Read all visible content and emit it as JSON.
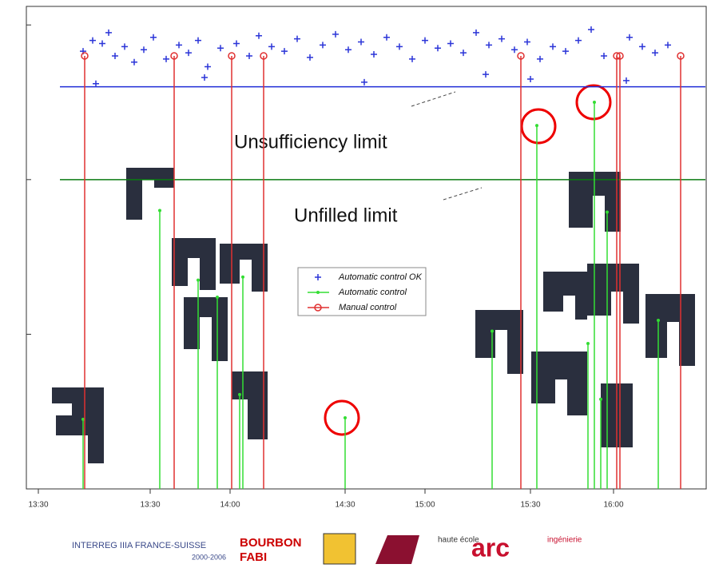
{
  "chart_data": {
    "type": "scatter",
    "xlim": [
      -3.75,
      209.25
    ],
    "ylim": [
      0,
      3.12
    ],
    "xticks": [
      {
        "value": 0,
        "label": "13:30"
      },
      {
        "value": 35,
        "label": "13:30"
      },
      {
        "value": 60,
        "label": "14:00"
      },
      {
        "value": 96,
        "label": "14:30"
      },
      {
        "value": 121,
        "label": "15:00"
      },
      {
        "value": 154,
        "label": "15:30"
      },
      {
        "value": 180,
        "label": "16:00"
      }
    ],
    "yticks": [
      1,
      2,
      3
    ],
    "hlines": [
      {
        "name": "Unsufficiency limit",
        "value": 2.6,
        "color": "#1f2bd6"
      },
      {
        "name": "Unfilled limit",
        "value": 2.0,
        "color": "#0a7a12"
      }
    ],
    "series": [
      {
        "name": "Automatic control OK",
        "color": "#2b35d8",
        "marker": "plus",
        "stem": false,
        "x": [
          14,
          17,
          20,
          22,
          24,
          27,
          30,
          33,
          36,
          40,
          44,
          47,
          50,
          53,
          57,
          62,
          66,
          69,
          73,
          77,
          81,
          85,
          89,
          93,
          97,
          101,
          105,
          109,
          113,
          117,
          121,
          125,
          129,
          133,
          137,
          141,
          145,
          149,
          153,
          157,
          161,
          165,
          169,
          173,
          177,
          185,
          189,
          193,
          197,
          18,
          52,
          102,
          140,
          154,
          184
        ],
        "values": [
          2.83,
          2.9,
          2.88,
          2.95,
          2.8,
          2.86,
          2.76,
          2.84,
          2.92,
          2.78,
          2.87,
          2.82,
          2.9,
          2.73,
          2.85,
          2.88,
          2.8,
          2.93,
          2.86,
          2.83,
          2.91,
          2.79,
          2.87,
          2.94,
          2.84,
          2.89,
          2.81,
          2.92,
          2.86,
          2.78,
          2.9,
          2.85,
          2.88,
          2.82,
          2.95,
          2.87,
          2.91,
          2.84,
          2.89,
          2.78,
          2.86,
          2.83,
          2.9,
          2.97,
          2.8,
          2.92,
          2.86,
          2.82,
          2.87,
          2.62,
          2.66,
          2.63,
          2.68,
          2.65,
          2.64
        ]
      },
      {
        "name": "Automatic control",
        "color": "#33dd33",
        "marker": "point",
        "stem": true,
        "x": [
          14,
          38,
          50,
          56,
          63,
          64,
          96,
          142,
          156,
          172,
          174,
          176,
          178,
          194
        ],
        "values": [
          0.45,
          1.8,
          1.35,
          1.24,
          0.61,
          1.37,
          0.46,
          1.02,
          2.35,
          0.94,
          2.5,
          0.58,
          1.79,
          1.09
        ]
      },
      {
        "name": "Manual control",
        "color": "#e03030",
        "marker": "circle",
        "stem": true,
        "x": [
          14.5,
          42.5,
          60.5,
          70.5,
          151,
          181,
          182,
          201
        ],
        "values": [
          2.8,
          2.8,
          2.8,
          2.8,
          2.8,
          2.8,
          2.8,
          2.8
        ]
      }
    ]
  },
  "footer": {
    "interreg": "INTERREG IIIA FRANCE-SUISSE",
    "interreg_years": "2000-2006",
    "bourbon": "BOURBON",
    "fabi": "FABI",
    "he_arc": "haute école",
    "arc": "arc",
    "ingenierie": "ingénierie"
  }
}
